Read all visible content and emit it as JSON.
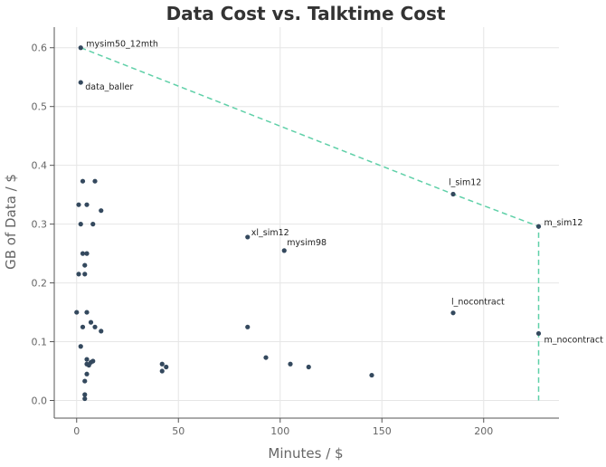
{
  "chart_data": {
    "type": "scatter",
    "title": "Data Cost vs. Talktime Cost",
    "xlabel": "Minutes / $",
    "ylabel": "GB of Data / $",
    "xlim": [
      -11,
      237
    ],
    "ylim": [
      -0.03,
      0.635
    ],
    "xticks": [
      0,
      50,
      100,
      150,
      200
    ],
    "yticks": [
      0.0,
      0.1,
      0.2,
      0.3,
      0.4,
      0.5,
      0.6
    ],
    "grid": true,
    "point_color": "#34495e",
    "frontier_color": "#5fd0a8",
    "points": [
      {
        "x": 2,
        "y": 0.6,
        "label": "mysim50_12mth"
      },
      {
        "x": 2,
        "y": 0.541,
        "label": "data_baller"
      },
      {
        "x": 185,
        "y": 0.351,
        "label": "l_sim12"
      },
      {
        "x": 227,
        "y": 0.296,
        "label": "m_sim12"
      },
      {
        "x": 84,
        "y": 0.278,
        "label": "xl_sim12"
      },
      {
        "x": 102,
        "y": 0.255,
        "label": "mysim98"
      },
      {
        "x": 185,
        "y": 0.149,
        "label": "l_nocontract"
      },
      {
        "x": 227,
        "y": 0.114,
        "label": "m_nocontract"
      },
      {
        "x": 3,
        "y": 0.373,
        "label": ""
      },
      {
        "x": 9,
        "y": 0.373,
        "label": ""
      },
      {
        "x": 1,
        "y": 0.333,
        "label": ""
      },
      {
        "x": 5,
        "y": 0.333,
        "label": ""
      },
      {
        "x": 12,
        "y": 0.323,
        "label": ""
      },
      {
        "x": 2,
        "y": 0.3,
        "label": ""
      },
      {
        "x": 8,
        "y": 0.3,
        "label": ""
      },
      {
        "x": 3,
        "y": 0.25,
        "label": ""
      },
      {
        "x": 5,
        "y": 0.25,
        "label": ""
      },
      {
        "x": 4,
        "y": 0.23,
        "label": ""
      },
      {
        "x": 1,
        "y": 0.215,
        "label": ""
      },
      {
        "x": 4,
        "y": 0.215,
        "label": ""
      },
      {
        "x": 0,
        "y": 0.15,
        "label": ""
      },
      {
        "x": 5,
        "y": 0.15,
        "label": ""
      },
      {
        "x": 7,
        "y": 0.133,
        "label": ""
      },
      {
        "x": 3,
        "y": 0.125,
        "label": ""
      },
      {
        "x": 9,
        "y": 0.125,
        "label": ""
      },
      {
        "x": 12,
        "y": 0.118,
        "label": ""
      },
      {
        "x": 84,
        "y": 0.125,
        "label": ""
      },
      {
        "x": 2,
        "y": 0.092,
        "label": ""
      },
      {
        "x": 5,
        "y": 0.07,
        "label": ""
      },
      {
        "x": 8,
        "y": 0.067,
        "label": ""
      },
      {
        "x": 7,
        "y": 0.065,
        "label": ""
      },
      {
        "x": 5,
        "y": 0.062,
        "label": ""
      },
      {
        "x": 6,
        "y": 0.06,
        "label": ""
      },
      {
        "x": 5,
        "y": 0.045,
        "label": ""
      },
      {
        "x": 4,
        "y": 0.033,
        "label": ""
      },
      {
        "x": 4,
        "y": 0.01,
        "label": ""
      },
      {
        "x": 4,
        "y": 0.003,
        "label": ""
      },
      {
        "x": 42,
        "y": 0.062,
        "label": ""
      },
      {
        "x": 44,
        "y": 0.057,
        "label": ""
      },
      {
        "x": 42,
        "y": 0.05,
        "label": ""
      },
      {
        "x": 93,
        "y": 0.073,
        "label": ""
      },
      {
        "x": 105,
        "y": 0.062,
        "label": ""
      },
      {
        "x": 114,
        "y": 0.057,
        "label": ""
      },
      {
        "x": 145,
        "y": 0.043,
        "label": ""
      }
    ],
    "frontier": [
      {
        "x": 2,
        "y": 0.6
      },
      {
        "x": 185,
        "y": 0.351
      },
      {
        "x": 227,
        "y": 0.296
      },
      {
        "x": 227,
        "y": 0.0
      }
    ]
  }
}
